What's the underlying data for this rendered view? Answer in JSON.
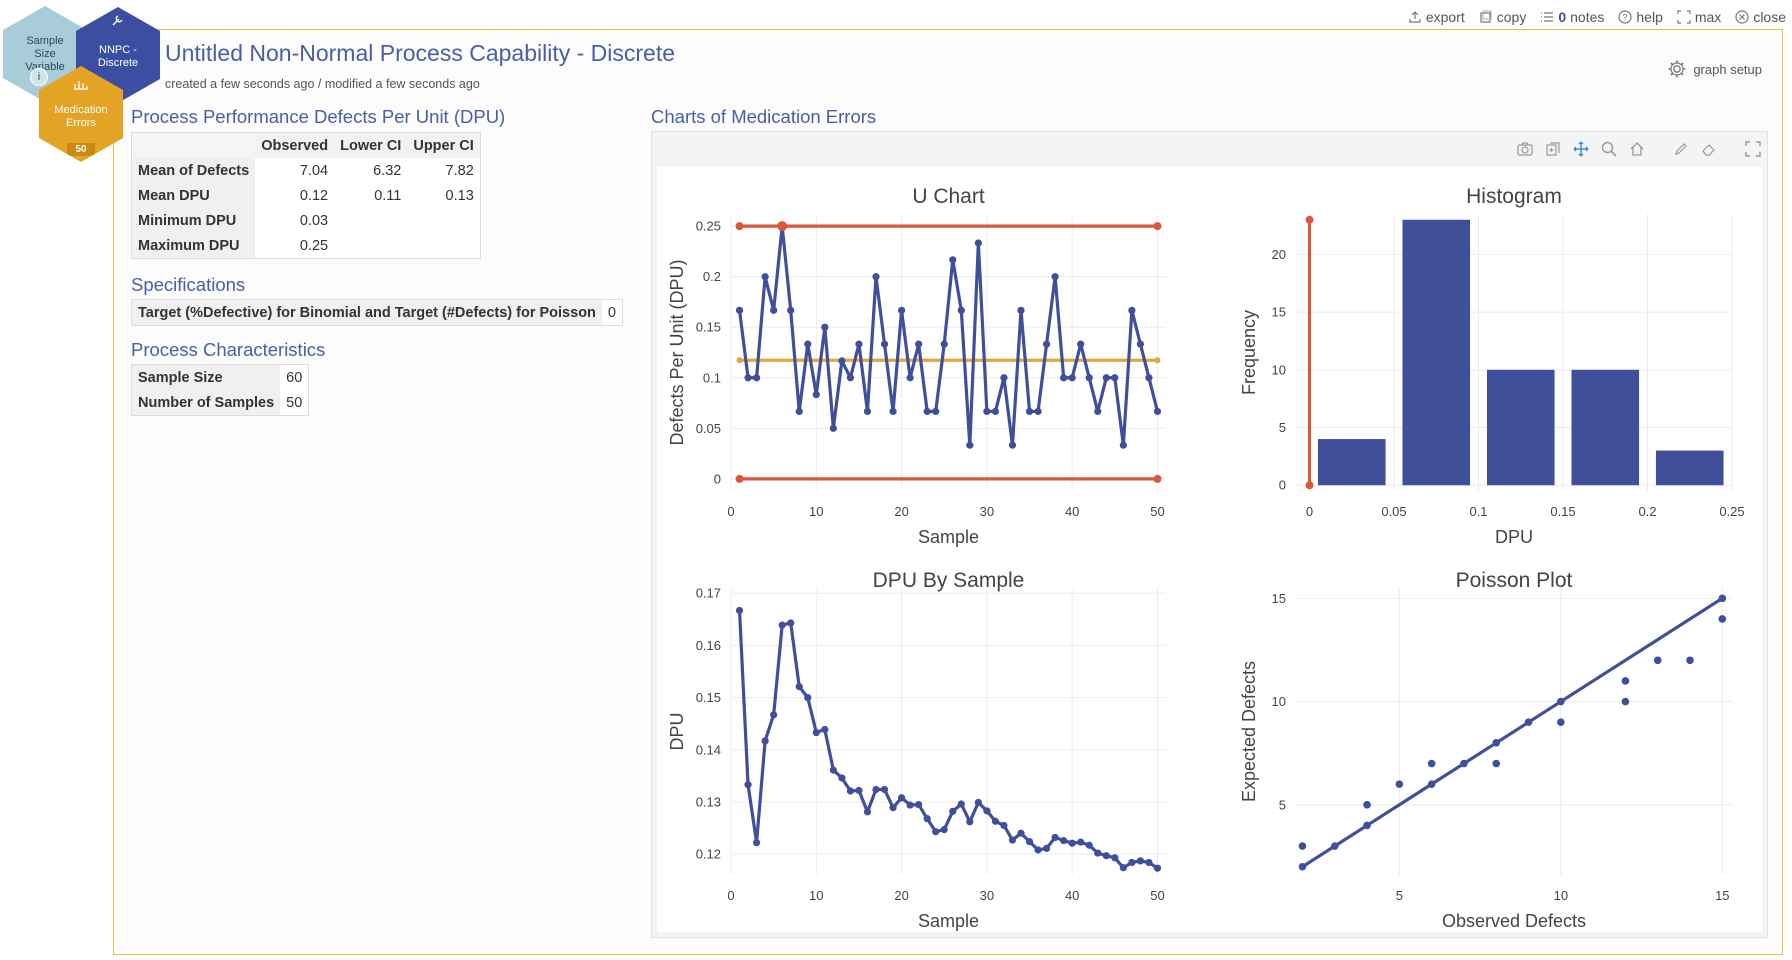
{
  "topbar": {
    "export_label": "export",
    "copy_label": "copy",
    "notes_count": "0",
    "notes_label": "notes",
    "help_label": "help",
    "max_label": "max",
    "close_label": "close"
  },
  "nav": {
    "hex1_label": "Sample Size Variable",
    "hex2_label": "NNPC - Discrete",
    "hex3_label": "Medication Errors",
    "hex3_count": "50"
  },
  "header": {
    "title": "Untitled Non-Normal Process Capability - Discrete",
    "subtitle": "created a few seconds ago / modified a few seconds ago",
    "graph_setup_label": "graph setup"
  },
  "performance": {
    "heading": "Process Performance Defects Per Unit (DPU)",
    "columns": [
      "Observed",
      "Lower CI",
      "Upper CI"
    ],
    "rows": [
      {
        "label": "Mean of Defects",
        "observed": "7.04",
        "lower": "6.32",
        "upper": "7.82"
      },
      {
        "label": "Mean DPU",
        "observed": "0.12",
        "lower": "0.11",
        "upper": "0.13"
      },
      {
        "label": "Minimum DPU",
        "observed": "0.03",
        "lower": "",
        "upper": ""
      },
      {
        "label": "Maximum DPU",
        "observed": "0.25",
        "lower": "",
        "upper": ""
      }
    ]
  },
  "specifications": {
    "heading": "Specifications",
    "rows": [
      {
        "label": "Target (%Defective) for Binomial and Target (#Defects) for Poisson",
        "value": "0"
      }
    ]
  },
  "characteristics": {
    "heading": "Process Characteristics",
    "rows": [
      {
        "label": "Sample Size",
        "value": "60"
      },
      {
        "label": "Number of Samples",
        "value": "50"
      }
    ]
  },
  "charts_panel": {
    "heading": "Charts of Medication Errors"
  },
  "colors": {
    "series": "#3f4f9a",
    "limit": "#d9573b",
    "center": "#e0a640",
    "accent": "#4a5ea6",
    "frame": "#e0c54a"
  },
  "chart_data": [
    {
      "type": "line",
      "title": "U Chart",
      "xlabel": "Sample",
      "ylabel": "Defects Per Unit (DPU)",
      "xlim": [
        0,
        51
      ],
      "ylim": [
        -0.012,
        0.262
      ],
      "xticks": [
        0,
        10,
        20,
        30,
        40,
        50
      ],
      "yticks": [
        0,
        0.05,
        0.1,
        0.15,
        0.2,
        0.25
      ],
      "ytick_labels": [
        "0",
        "0.05",
        "0.1",
        "0.15",
        "0.2",
        "0.25"
      ],
      "x": [
        1,
        2,
        3,
        4,
        5,
        6,
        7,
        8,
        9,
        10,
        11,
        12,
        13,
        14,
        15,
        16,
        17,
        18,
        19,
        20,
        21,
        22,
        23,
        24,
        25,
        26,
        27,
        28,
        29,
        30,
        31,
        32,
        33,
        34,
        35,
        36,
        37,
        38,
        39,
        40,
        41,
        42,
        43,
        44,
        45,
        46,
        47,
        48,
        49,
        50
      ],
      "values": [
        0.1667,
        0.1,
        0.1,
        0.2,
        0.1667,
        0.25,
        0.1667,
        0.0667,
        0.1333,
        0.0833,
        0.15,
        0.05,
        0.1167,
        0.1,
        0.1333,
        0.0667,
        0.2,
        0.1333,
        0.0667,
        0.1667,
        0.1,
        0.1333,
        0.0667,
        0.0667,
        0.1333,
        0.2167,
        0.1667,
        0.0333,
        0.2333,
        0.0667,
        0.0667,
        0.1,
        0.0333,
        0.1667,
        0.0667,
        0.0667,
        0.1333,
        0.2,
        0.1,
        0.1,
        0.1333,
        0.1,
        0.0667,
        0.1,
        0.1,
        0.0333,
        0.1667,
        0.1333,
        0.1,
        0.0667
      ],
      "ucl": 0.25,
      "center": 0.1173,
      "lcl": 0
    },
    {
      "type": "bar",
      "title": "Histogram",
      "xlabel": "DPU",
      "ylabel": "Frequency",
      "xlim": [
        -0.008,
        0.25
      ],
      "ylim": [
        -0.5,
        23.5
      ],
      "xticks": [
        0,
        0.05,
        0.1,
        0.15,
        0.2,
        0.25
      ],
      "xtick_labels": [
        "0",
        "0.05",
        "0.1",
        "0.15",
        "0.2",
        "0.25"
      ],
      "yticks": [
        0,
        5,
        10,
        15,
        20
      ],
      "bins": [
        [
          0.005,
          0.045
        ],
        [
          0.055,
          0.095
        ],
        [
          0.105,
          0.145
        ],
        [
          0.155,
          0.195
        ],
        [
          0.205,
          0.245
        ]
      ],
      "values": [
        4,
        23,
        10,
        10,
        3
      ],
      "spec_line_x": 0,
      "spec_line_top": 23
    },
    {
      "type": "line",
      "title": "DPU By Sample",
      "xlabel": "Sample",
      "ylabel": "DPU",
      "xlim": [
        0,
        51
      ],
      "ylim": [
        0.116,
        0.171
      ],
      "xticks": [
        0,
        10,
        20,
        30,
        40,
        50
      ],
      "yticks": [
        0.12,
        0.13,
        0.14,
        0.15,
        0.16,
        0.17
      ],
      "ytick_labels": [
        "0.12",
        "0.13",
        "0.14",
        "0.15",
        "0.16",
        "0.17"
      ],
      "x": [
        1,
        2,
        3,
        4,
        5,
        6,
        7,
        8,
        9,
        10,
        11,
        12,
        13,
        14,
        15,
        16,
        17,
        18,
        19,
        20,
        21,
        22,
        23,
        24,
        25,
        26,
        27,
        28,
        29,
        30,
        31,
        32,
        33,
        34,
        35,
        36,
        37,
        38,
        39,
        40,
        41,
        42,
        43,
        44,
        45,
        46,
        47,
        48,
        49,
        50
      ],
      "values": [
        0.1667,
        0.1333,
        0.1222,
        0.1417,
        0.1467,
        0.1639,
        0.1643,
        0.1521,
        0.15,
        0.1433,
        0.1439,
        0.1361,
        0.1346,
        0.1321,
        0.1322,
        0.1281,
        0.1324,
        0.1324,
        0.1289,
        0.1308,
        0.1294,
        0.1295,
        0.1268,
        0.1243,
        0.1247,
        0.1282,
        0.1296,
        0.1262,
        0.1299,
        0.1283,
        0.1263,
        0.1255,
        0.1227,
        0.124,
        0.1224,
        0.1208,
        0.1211,
        0.1232,
        0.1226,
        0.1221,
        0.1223,
        0.1217,
        0.1202,
        0.1197,
        0.1193,
        0.1174,
        0.1184,
        0.1187,
        0.1184,
        0.1173
      ]
    },
    {
      "type": "scatter",
      "title": "Poisson Plot",
      "xlabel": "Observed Defects",
      "ylabel": "Expected Defects",
      "xlim": [
        1.8,
        15.3
      ],
      "ylim": [
        1.6,
        15.5
      ],
      "xticks": [
        5,
        10,
        15
      ],
      "yticks": [
        5,
        10,
        15
      ],
      "points": [
        [
          2,
          2
        ],
        [
          2,
          3
        ],
        [
          3,
          3
        ],
        [
          4,
          4
        ],
        [
          4,
          5
        ],
        [
          5,
          6
        ],
        [
          6,
          6
        ],
        [
          6,
          7
        ],
        [
          7,
          7
        ],
        [
          8,
          7
        ],
        [
          8,
          8
        ],
        [
          9,
          9
        ],
        [
          10,
          9
        ],
        [
          10,
          10
        ],
        [
          12,
          10
        ],
        [
          12,
          11
        ],
        [
          13,
          12
        ],
        [
          14,
          12
        ],
        [
          15,
          14
        ],
        [
          15,
          15
        ]
      ],
      "fit_line": [
        [
          2,
          2
        ],
        [
          15,
          15
        ]
      ]
    }
  ]
}
